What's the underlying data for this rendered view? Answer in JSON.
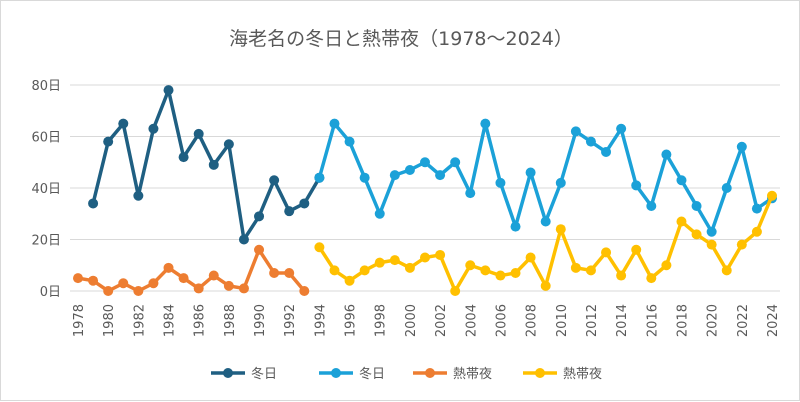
{
  "chart_data": {
    "type": "line",
    "title": "海老名の冬日と熱帯夜（1978～2024）",
    "ylim": [
      0,
      80
    ],
    "y_ticks": [
      "0日",
      "20日",
      "40日",
      "60日",
      "80日"
    ],
    "y_tick_values": [
      0,
      20,
      40,
      60,
      80
    ],
    "x_ticks": [
      "1978",
      "1980",
      "1982",
      "1984",
      "1986",
      "1988",
      "1990",
      "1992",
      "1994",
      "1996",
      "1998",
      "2000",
      "2002",
      "2004",
      "2006",
      "2008",
      "2010",
      "2012",
      "2014",
      "2016",
      "2018",
      "2020",
      "2022",
      "2024"
    ],
    "grid": true,
    "legend_position": "bottom",
    "series": [
      {
        "name": "冬日",
        "color": "#1f5f82",
        "start_year": 1979,
        "values": [
          34,
          58,
          65,
          37,
          63,
          78,
          52,
          61,
          49,
          57,
          20,
          29,
          43,
          31,
          34,
          44
        ]
      },
      {
        "name": "冬日",
        "color": "#1ba1d8",
        "start_year": 1994,
        "values": [
          44,
          65,
          58,
          44,
          30,
          45,
          47,
          50,
          45,
          50,
          38,
          65,
          42,
          25,
          46,
          27,
          42,
          62,
          58,
          54,
          63,
          41,
          33,
          53,
          43,
          33,
          23,
          40,
          56,
          32,
          36
        ]
      },
      {
        "name": "熱帯夜",
        "color": "#ed7d31",
        "start_year": 1978,
        "values": [
          5,
          4,
          0,
          3,
          0,
          3,
          9,
          5,
          1,
          6,
          2,
          1,
          16,
          7,
          7,
          0
        ]
      },
      {
        "name": "熱帯夜",
        "color": "#ffc000",
        "start_year": 1994,
        "values": [
          17,
          8,
          4,
          8,
          11,
          12,
          9,
          13,
          14,
          0,
          10,
          8,
          6,
          7,
          13,
          2,
          24,
          9,
          8,
          15,
          6,
          16,
          5,
          10,
          27,
          22,
          18,
          8,
          18,
          23,
          37
        ]
      }
    ]
  }
}
